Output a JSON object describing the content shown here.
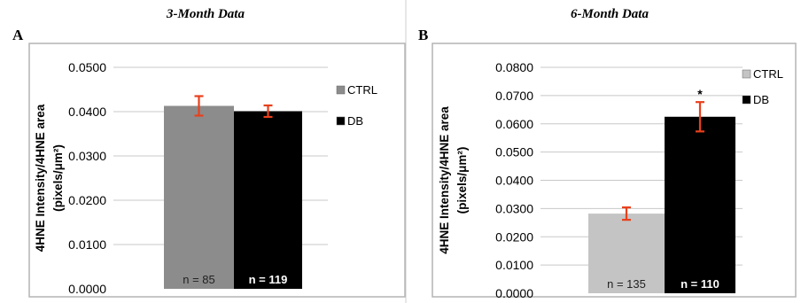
{
  "chart_data": [
    {
      "type": "bar",
      "panel_label": "A",
      "title": "3-Month Data",
      "ylabel_line1": "4HNE Intensity/4HNE area",
      "ylabel_line2": "(pixels/μm²)",
      "ylim": [
        0,
        0.05
      ],
      "yticks": [
        "0.0000",
        "0.0100",
        "0.0200",
        "0.0300",
        "0.0400",
        "0.0500"
      ],
      "ytick_values": [
        0,
        0.01,
        0.02,
        0.03,
        0.04,
        0.05
      ],
      "grid": true,
      "legend_position": "right",
      "series": [
        {
          "name": "CTRL",
          "value": 0.0413,
          "error": 0.0022,
          "n_label": "n = 85",
          "color": "#8c8c8c",
          "n_color": "#222222",
          "n_bold": false
        },
        {
          "name": "DB",
          "value": 0.0401,
          "error": 0.0013,
          "n_label": "n = 119",
          "color": "#000000",
          "n_color": "#ffffff",
          "n_bold": true
        }
      ]
    },
    {
      "type": "bar",
      "panel_label": "B",
      "title": "6-Month Data",
      "ylabel_line1": "4HNE Intensity/4HNE area",
      "ylabel_line2": "(pixels/μm²)",
      "ylim": [
        0,
        0.08
      ],
      "yticks": [
        "0.0000",
        "0.0100",
        "0.0200",
        "0.0300",
        "0.0400",
        "0.0500",
        "0.0600",
        "0.0700",
        "0.0800"
      ],
      "ytick_values": [
        0,
        0.01,
        0.02,
        0.03,
        0.04,
        0.05,
        0.06,
        0.07,
        0.08
      ],
      "grid": true,
      "legend_position": "right",
      "significance": "*",
      "series": [
        {
          "name": "CTRL",
          "value": 0.0282,
          "error": 0.0022,
          "n_label": "n = 135",
          "color": "#c4c4c4",
          "n_color": "#222222",
          "n_bold": false
        },
        {
          "name": "DB",
          "value": 0.0625,
          "error": 0.0052,
          "n_label": "n = 110",
          "color": "#000000",
          "n_color": "#ffffff",
          "n_bold": true
        }
      ]
    }
  ],
  "colors": {
    "error_bar": "#e8401c",
    "gridline": "#c8c8c8",
    "panel_border": "#b4b4b4"
  }
}
